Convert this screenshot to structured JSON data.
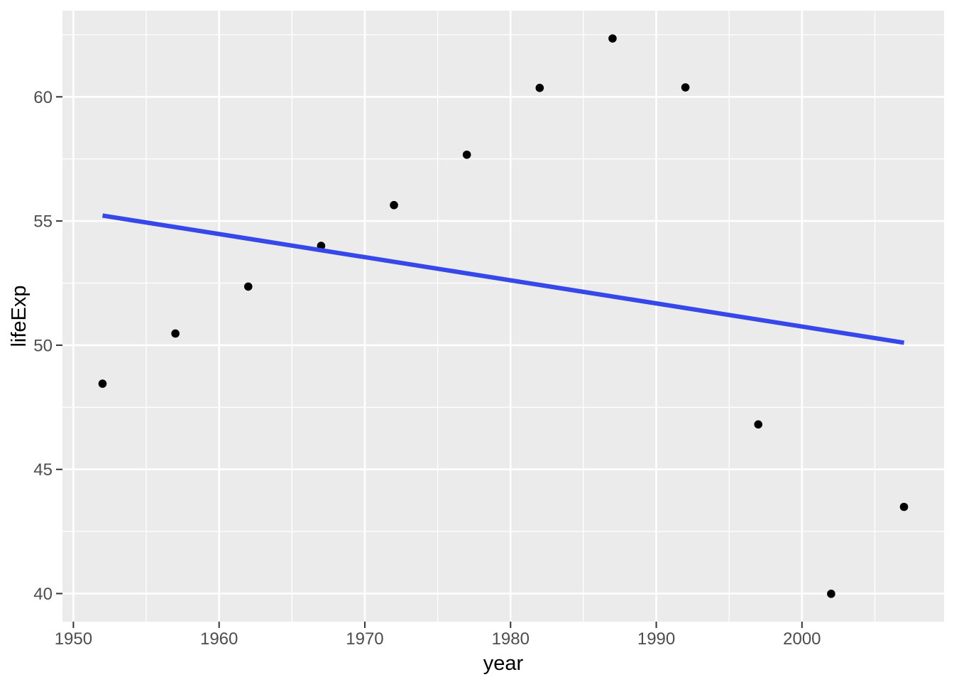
{
  "figure": {
    "kind": "ggplot-scatter-with-lm-trend",
    "background": "#FFFFFF"
  },
  "chart_data": {
    "type": "scatter",
    "title": "",
    "xlabel": "year",
    "ylabel": "lifeExp",
    "x": [
      1952,
      1957,
      1962,
      1967,
      1972,
      1977,
      1982,
      1987,
      1992,
      1997,
      2002,
      2007
    ],
    "series": [
      {
        "name": "lifeExp-points",
        "type": "points",
        "color": "#000000",
        "values": [
          48.45,
          50.47,
          52.36,
          54.0,
          55.64,
          57.67,
          60.36,
          62.35,
          60.38,
          46.81,
          39.99,
          43.49
        ]
      },
      {
        "name": "linear-trend",
        "type": "line",
        "color": "#3648EA",
        "x": [
          1952,
          2007
        ],
        "values": [
          55.22,
          50.1
        ]
      }
    ],
    "xlim": [
      1949.25,
      2009.75
    ],
    "ylim": [
      38.87,
      63.47
    ],
    "x_major_ticks": [
      1950,
      1960,
      1970,
      1980,
      1990,
      2000
    ],
    "x_minor_ticks": [
      1955,
      1965,
      1975,
      1985,
      1995,
      2005
    ],
    "y_major_ticks": [
      40,
      45,
      50,
      55,
      60
    ],
    "y_minor_ticks": [
      42.5,
      47.5,
      52.5,
      57.5,
      62.5
    ],
    "x_tick_labels": [
      "1950",
      "1960",
      "1970",
      "1980",
      "1990",
      "2000"
    ],
    "y_tick_labels": [
      "40",
      "45",
      "50",
      "55",
      "60"
    ],
    "grid": true,
    "legend": "none",
    "theme": {
      "panel_bg": "#EBEBEB",
      "grid_color": "#FFFFFF",
      "tick_mark_color": "#333333",
      "tick_label_color": "#4D4D4D",
      "axis_title_color": "#000000",
      "point_color": "#000000",
      "trend_color": "#3648EA"
    }
  }
}
